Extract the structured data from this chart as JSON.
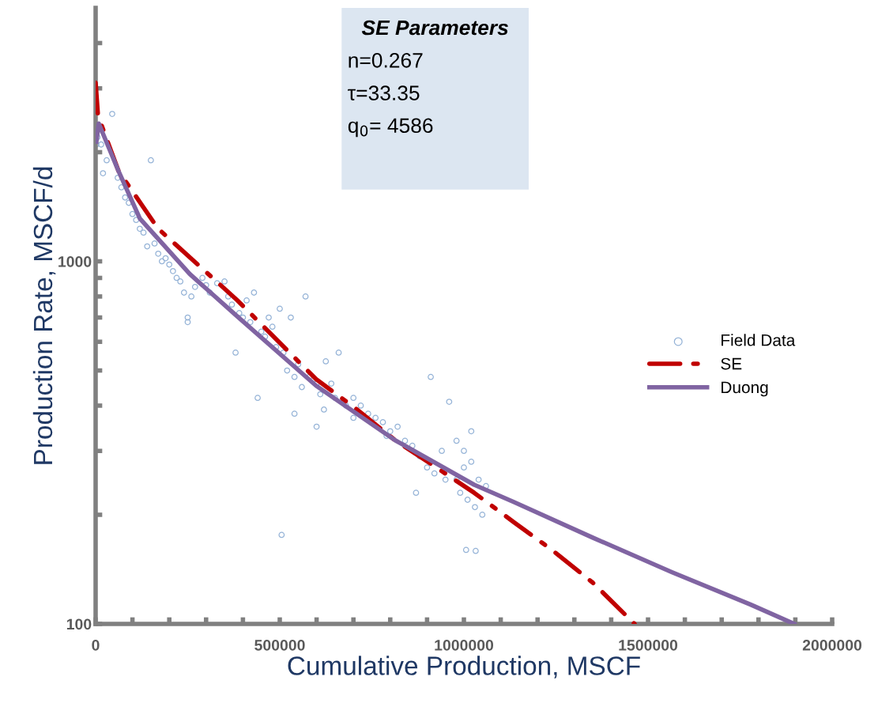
{
  "chart_data": {
    "type": "scatter",
    "xlabel": "Cumulative Production, MSCF",
    "ylabel": "Production Rate, MSCF/d",
    "xlim": [
      0,
      2000000
    ],
    "ylim": [
      100,
      5000
    ],
    "log": "y",
    "xticks": [
      0,
      {
        "value": 100000,
        "label": null
      },
      {
        "value": 200000,
        "label": null
      },
      {
        "value": 300000,
        "label": null
      },
      {
        "value": 400000,
        "label": null
      },
      500000,
      {
        "value": 600000,
        "label": null
      },
      {
        "value": 700000,
        "label": null
      },
      {
        "value": 800000,
        "label": null
      },
      {
        "value": 900000,
        "label": null
      },
      1000000,
      {
        "value": 1100000,
        "label": null
      },
      {
        "value": 1200000,
        "label": null
      },
      {
        "value": 1300000,
        "label": null
      },
      {
        "value": 1400000,
        "label": null
      },
      1500000,
      {
        "value": 1600000,
        "label": null
      },
      {
        "value": 1700000,
        "label": null
      },
      {
        "value": 1800000,
        "label": null
      },
      {
        "value": 1900000,
        "label": null
      },
      2000000
    ],
    "yticks": [
      100,
      {
        "value": 200,
        "label": null
      },
      {
        "value": 300,
        "label": null
      },
      {
        "value": 400,
        "label": null
      },
      {
        "value": 500,
        "label": null
      },
      {
        "value": 600,
        "label": null
      },
      {
        "value": 700,
        "label": null
      },
      {
        "value": 800,
        "label": null
      },
      {
        "value": 900,
        "label": null
      },
      1000,
      {
        "value": 2000,
        "label": null
      },
      {
        "value": 3000,
        "label": null
      },
      {
        "value": 4000,
        "label": null
      }
    ],
    "grid": false,
    "legend": "right",
    "annotations": [
      "SE Parameters",
      "n=0.267",
      "τ=33.35",
      "q$_{0}$= 4586"
    ],
    "series": [
      {
        "name": "Field Data",
        "marker": "circle",
        "color": "#95b3d7",
        "x": [
          2000,
          5000,
          15000,
          45000,
          30000,
          20000,
          60000,
          70000,
          80000,
          90000,
          100000,
          110000,
          120000,
          130000,
          150000,
          140000,
          160000,
          170000,
          180000,
          190000,
          200000,
          210000,
          220000,
          230000,
          250000,
          240000,
          260000,
          270000,
          290000,
          300000,
          310000,
          330000,
          350000,
          360000,
          370000,
          380000,
          390000,
          400000,
          410000,
          420000,
          430000,
          440000,
          450000,
          460000,
          470000,
          480000,
          490000,
          500000,
          510000,
          520000,
          530000,
          540000,
          550000,
          560000,
          570000,
          580000,
          600000,
          610000,
          620000,
          625000,
          640000,
          650000,
          660000,
          680000,
          700000,
          720000,
          740000,
          760000,
          780000,
          790000,
          800000,
          820000,
          840000,
          860000,
          880000,
          900000,
          910000,
          920000,
          940000,
          950000,
          960000,
          980000,
          990000,
          1000000,
          1010000,
          1020000,
          1030000,
          1040000,
          1050000,
          1060000,
          505000,
          1006000,
          1032000,
          870000,
          250000,
          600000,
          700000,
          540000,
          1000000,
          1020000,
          980000
        ],
        "values": [
          2100,
          2200,
          2100,
          2550,
          1900,
          1750,
          1700,
          1600,
          1500,
          1450,
          1350,
          1300,
          1230,
          1200,
          1900,
          1100,
          1120,
          1050,
          1000,
          1020,
          980,
          940,
          900,
          880,
          700,
          820,
          800,
          850,
          900,
          860,
          820,
          870,
          880,
          800,
          760,
          560,
          720,
          700,
          780,
          680,
          820,
          420,
          640,
          620,
          700,
          660,
          580,
          740,
          560,
          500,
          700,
          480,
          520,
          450,
          800,
          480,
          460,
          430,
          390,
          530,
          460,
          420,
          560,
          400,
          420,
          400,
          380,
          370,
          360,
          330,
          340,
          350,
          320,
          310,
          290,
          270,
          480,
          260,
          300,
          250,
          410,
          250,
          230,
          270,
          220,
          280,
          210,
          250,
          200,
          240,
          176,
          160,
          159,
          230,
          680,
          350,
          370,
          380,
          300,
          340,
          320
        ]
      },
      {
        "name": "SE",
        "type": "line",
        "line_style": "dashed",
        "color": "#c00000",
        "x": [
          0,
          6400,
          62200,
          169500,
          384100,
          598700,
          706000,
          813300,
          920600,
          1027900,
          1135200,
          1242500,
          1349800,
          1463500
        ],
        "values": [
          3111,
          2523,
          1774,
          1231,
          782,
          473,
          393,
          321,
          272,
          230,
          191,
          159,
          130,
          100
        ]
      },
      {
        "name": "Duong",
        "type": "line",
        "line_style": "solid",
        "color": "#8064a2",
        "x": [
          2100,
          8600,
          62200,
          120200,
          255400,
          384100,
          598700,
          813300,
          1027900,
          1135200,
          1349800,
          1564400,
          1779000,
          1897000
        ],
        "values": [
          2138,
          2399,
          1774,
          1312,
          923,
          706,
          454,
          321,
          242,
          217,
          173,
          139,
          113,
          100
        ]
      }
    ]
  }
}
